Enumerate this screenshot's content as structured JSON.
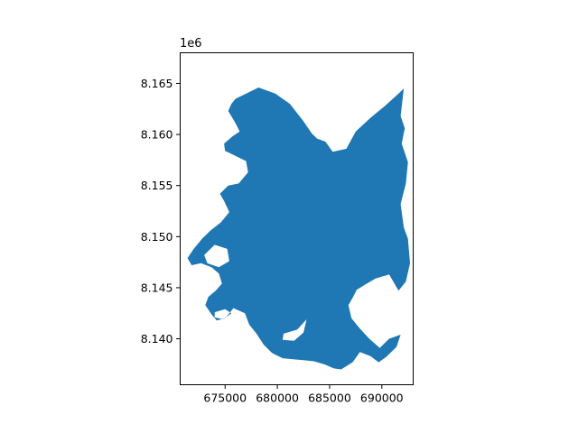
{
  "chart_data": {
    "type": "map",
    "title": "",
    "xlabel": "",
    "ylabel": "",
    "y_offset_label": "1e6",
    "xlim": [
      670700,
      693000
    ],
    "ylim": [
      8135500,
      8168000
    ],
    "x_ticks": [
      {
        "value": 675000,
        "label": "675000"
      },
      {
        "value": 680000,
        "label": "680000"
      },
      {
        "value": 685000,
        "label": "685000"
      },
      {
        "value": 690000,
        "label": "690000"
      }
    ],
    "y_ticks": [
      {
        "value": 8140000,
        "label": "8.140"
      },
      {
        "value": 8145000,
        "label": "8.145"
      },
      {
        "value": 8150000,
        "label": "8.150"
      },
      {
        "value": 8155000,
        "label": "8.155"
      },
      {
        "value": 8160000,
        "label": "8.160"
      },
      {
        "value": 8165000,
        "label": "8.165"
      }
    ],
    "fill_color": "#1f77b4",
    "grid": false,
    "legend": "none",
    "outline": [
      [
        676000,
        8163500
      ],
      [
        678200,
        8164600
      ],
      [
        679800,
        8164000
      ],
      [
        681200,
        8163000
      ],
      [
        682500,
        8161300
      ],
      [
        683300,
        8160100
      ],
      [
        683800,
        8159600
      ],
      [
        684600,
        8159300
      ],
      [
        685300,
        8158300
      ],
      [
        686600,
        8158600
      ],
      [
        687500,
        8160300
      ],
      [
        689000,
        8161700
      ],
      [
        690300,
        8162800
      ],
      [
        691600,
        8164000
      ],
      [
        692100,
        8164500
      ],
      [
        691800,
        8161800
      ],
      [
        692200,
        8160600
      ],
      [
        691900,
        8159100
      ],
      [
        692500,
        8157300
      ],
      [
        692300,
        8155200
      ],
      [
        691800,
        8153200
      ],
      [
        692100,
        8150900
      ],
      [
        692500,
        8149800
      ],
      [
        692700,
        8147400
      ],
      [
        692300,
        8145600
      ],
      [
        691600,
        8144700
      ],
      [
        690700,
        8146300
      ],
      [
        689400,
        8145900
      ],
      [
        688400,
        8145300
      ],
      [
        687600,
        8144800
      ],
      [
        687200,
        8144000
      ],
      [
        686800,
        8143300
      ],
      [
        687100,
        8142000
      ],
      [
        687900,
        8141000
      ],
      [
        688800,
        8140000
      ],
      [
        689800,
        8139100
      ],
      [
        690700,
        8140000
      ],
      [
        691800,
        8140400
      ],
      [
        691400,
        8139200
      ],
      [
        690400,
        8138200
      ],
      [
        689700,
        8137700
      ],
      [
        688900,
        8138300
      ],
      [
        687900,
        8138700
      ],
      [
        687200,
        8137700
      ],
      [
        686100,
        8137000
      ],
      [
        685400,
        8137100
      ],
      [
        684500,
        8137500
      ],
      [
        683500,
        8137800
      ],
      [
        682500,
        8137900
      ],
      [
        681500,
        8138000
      ],
      [
        680500,
        8138100
      ],
      [
        679500,
        8138600
      ],
      [
        678700,
        8139400
      ],
      [
        678000,
        8140500
      ],
      [
        677300,
        8141400
      ],
      [
        676900,
        8142500
      ],
      [
        675800,
        8143000
      ],
      [
        675000,
        8142000
      ],
      [
        674200,
        8141800
      ],
      [
        673700,
        8142400
      ],
      [
        673100,
        8143300
      ],
      [
        673400,
        8144100
      ],
      [
        674100,
        8144700
      ],
      [
        674700,
        8145400
      ],
      [
        674400,
        8146400
      ],
      [
        673700,
        8147000
      ],
      [
        672700,
        8147400
      ],
      [
        671800,
        8147200
      ],
      [
        671400,
        8147900
      ],
      [
        672000,
        8148800
      ],
      [
        672800,
        8149800
      ],
      [
        673600,
        8150600
      ],
      [
        674600,
        8151400
      ],
      [
        675400,
        8152400
      ],
      [
        674900,
        8153500
      ],
      [
        674500,
        8154200
      ],
      [
        675300,
        8155000
      ],
      [
        676300,
        8155200
      ],
      [
        677200,
        8156300
      ],
      [
        677000,
        8157400
      ],
      [
        676000,
        8157900
      ],
      [
        675000,
        8158400
      ],
      [
        674900,
        8159100
      ],
      [
        675700,
        8159800
      ],
      [
        676400,
        8160300
      ],
      [
        676000,
        8161100
      ],
      [
        675300,
        8162300
      ],
      [
        675600,
        8163000
      ]
    ],
    "holes": [
      [
        [
          673000,
          8148200
        ],
        [
          674000,
          8149200
        ],
        [
          675200,
          8148800
        ],
        [
          675400,
          8147600
        ],
        [
          674400,
          8147000
        ],
        [
          673300,
          8147400
        ]
      ],
      [
        [
          680600,
          8140500
        ],
        [
          681900,
          8140900
        ],
        [
          682800,
          8141900
        ],
        [
          682500,
          8140600
        ],
        [
          681600,
          8139800
        ],
        [
          680500,
          8139900
        ]
      ],
      [
        [
          674000,
          8142600
        ],
        [
          675000,
          8142900
        ],
        [
          675600,
          8142500
        ],
        [
          674800,
          8141900
        ],
        [
          674000,
          8142100
        ]
      ]
    ]
  }
}
